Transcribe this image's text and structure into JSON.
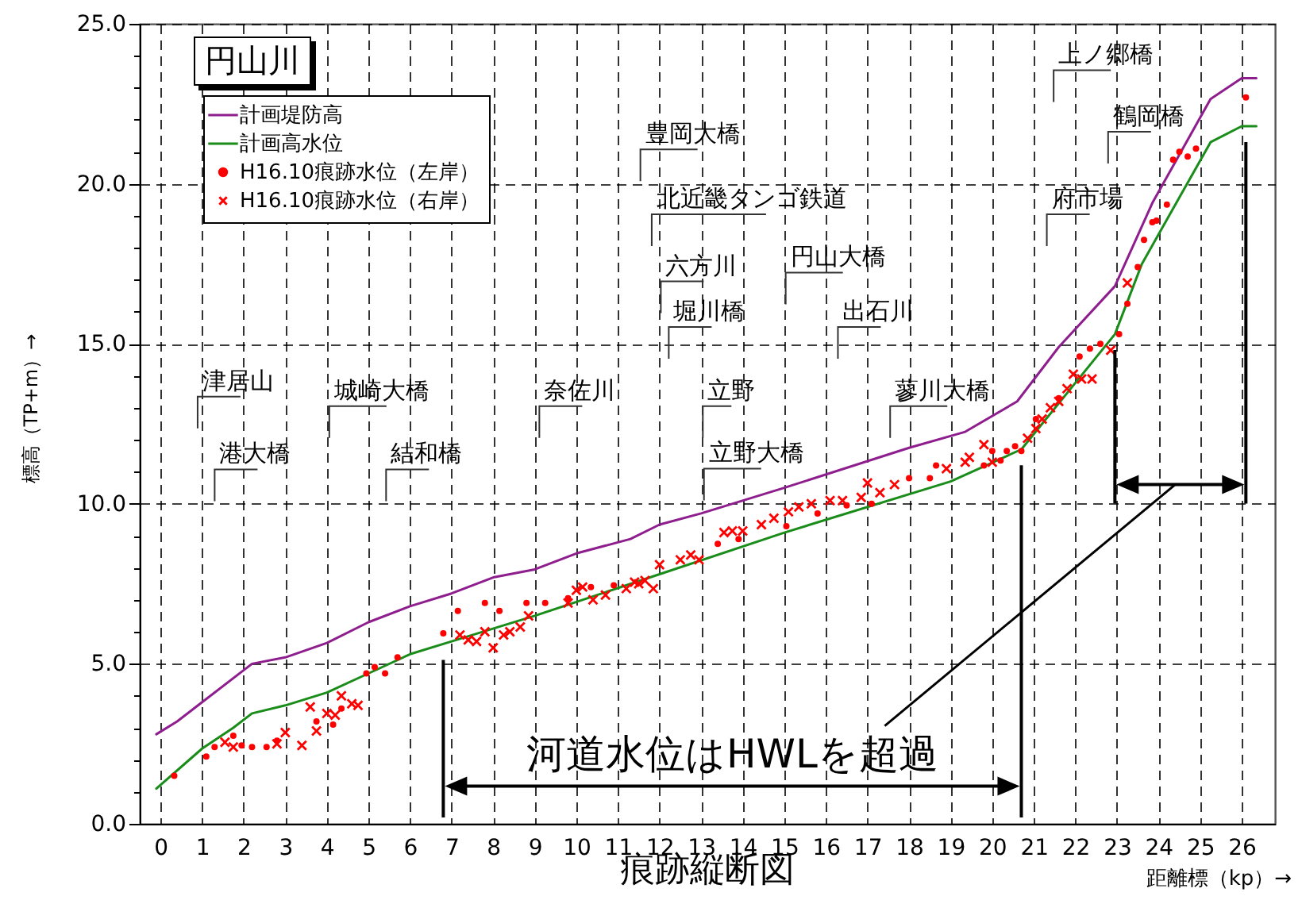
{
  "chart_data": {
    "type": "line",
    "title": "痕跡縦断図",
    "subtitle": "円山川",
    "xlabel": "距離標（kp）→",
    "ylabel": "標高（TP+m）→",
    "xlim": [
      -0.5,
      26.8
    ],
    "ylim": [
      0,
      25
    ],
    "xticks": [
      0,
      1,
      2,
      3,
      4,
      5,
      6,
      7,
      8,
      9,
      10,
      11,
      12,
      13,
      14,
      15,
      16,
      17,
      18,
      19,
      20,
      21,
      22,
      23,
      24,
      25,
      26
    ],
    "yticks": [
      {
        "value": 0,
        "label": "0.0"
      },
      {
        "value": 1,
        "label": null
      },
      {
        "value": 2,
        "label": null
      },
      {
        "value": 3,
        "label": null
      },
      {
        "value": 4,
        "label": null
      },
      {
        "value": 5,
        "label": "5.0"
      },
      {
        "value": 6,
        "label": null
      },
      {
        "value": 7,
        "label": null
      },
      {
        "value": 8,
        "label": null
      },
      {
        "value": 9,
        "label": null
      },
      {
        "value": 10,
        "label": "10.0"
      },
      {
        "value": 11,
        "label": null
      },
      {
        "value": 12,
        "label": null
      },
      {
        "value": 13,
        "label": null
      },
      {
        "value": 14,
        "label": null
      },
      {
        "value": 15,
        "label": "15.0"
      },
      {
        "value": 16,
        "label": null
      },
      {
        "value": 17,
        "label": null
      },
      {
        "value": 18,
        "label": null
      },
      {
        "value": 19,
        "label": null
      },
      {
        "value": 20,
        "label": "20.0"
      },
      {
        "value": 21,
        "label": null
      },
      {
        "value": 22,
        "label": null
      },
      {
        "value": 23,
        "label": null
      },
      {
        "value": 24,
        "label": null
      },
      {
        "value": 25,
        "label": "25.0"
      }
    ],
    "grid": true,
    "legend": "top left",
    "series": [
      {
        "name": "計画堤防高",
        "color": "#8e1e8e",
        "x": [
          -0.1,
          0.4,
          1,
          2.2,
          3,
          4,
          5,
          6,
          7,
          8,
          9,
          10,
          11.3,
          12,
          13,
          15,
          18,
          19.35,
          20.6,
          21.6,
          22.95,
          23.85,
          25.25,
          26,
          26.35
        ],
        "values": [
          2.8,
          3.2,
          3.8,
          5.0,
          5.2,
          5.65,
          6.3,
          6.8,
          7.2,
          7.7,
          7.95,
          8.45,
          8.9,
          9.35,
          9.7,
          10.5,
          11.75,
          12.25,
          13.2,
          14.9,
          16.8,
          19.4,
          22.65,
          23.3,
          23.3
        ]
      },
      {
        "name": "計画高水位",
        "color": "#1a8c1a",
        "x": [
          -0.1,
          1,
          1.75,
          2.2,
          3,
          4,
          5,
          6,
          7,
          9,
          12,
          15,
          19,
          20.7,
          22.95,
          23.6,
          25.25,
          26,
          26.35
        ],
        "values": [
          1.1,
          2.35,
          3.0,
          3.45,
          3.7,
          4.1,
          4.7,
          5.3,
          5.7,
          6.5,
          7.8,
          9.1,
          10.7,
          11.7,
          15.3,
          17.5,
          21.3,
          21.8,
          21.8
        ]
      },
      {
        "name": "H16.10痕跡水位（左岸）",
        "type": "scatter",
        "marker": "circle",
        "color": "#ff0000",
        "x": [
          0.33,
          1.1,
          1.3,
          1.75,
          1.95,
          2.2,
          2.55,
          2.8,
          3.75,
          4.15,
          4.35,
          4.95,
          5.15,
          5.4,
          5.7,
          6.8,
          7.15,
          7.8,
          8.15,
          8.8,
          9.25,
          9.8,
          10.35,
          10.9,
          13.4,
          13.9,
          15.05,
          15.8,
          16.5,
          17.1,
          18,
          18.5,
          18.65,
          19.8,
          20,
          20.2,
          20.35,
          20.55,
          20.7,
          21.05,
          21.6,
          22.1,
          22.35,
          22.6,
          23.05,
          23.25,
          23.5,
          23.65,
          23.85,
          23.95,
          24.2,
          24.35,
          24.5,
          24.7,
          24.9,
          26.1
        ],
        "values": [
          1.5,
          2.1,
          2.4,
          2.75,
          2.45,
          2.4,
          2.4,
          2.6,
          3.2,
          3.1,
          3.6,
          4.7,
          4.9,
          4.7,
          5.2,
          5.95,
          6.65,
          6.9,
          6.65,
          6.9,
          6.9,
          7.05,
          7.4,
          7.45,
          8.75,
          8.9,
          9.3,
          9.7,
          9.95,
          10.0,
          10.8,
          10.8,
          11.2,
          11.2,
          11.65,
          11.35,
          11.65,
          11.8,
          11.65,
          12.65,
          13.3,
          14.6,
          14.85,
          15.0,
          15.3,
          16.25,
          17.4,
          18.25,
          18.8,
          18.85,
          19.35,
          20.75,
          21.0,
          20.85,
          21.1,
          22.7
        ]
      },
      {
        "name": "H16.10痕跡水位（右岸）",
        "type": "scatter",
        "marker": "cross",
        "color": "#ff0000",
        "x": [
          1.55,
          1.75,
          2.8,
          3,
          3.4,
          3.6,
          3.75,
          4,
          4.2,
          4.35,
          4.6,
          4.75,
          7.2,
          7.4,
          7.6,
          7.8,
          8,
          8.25,
          8.4,
          8.65,
          8.85,
          9.8,
          10,
          10.15,
          10.4,
          10.7,
          11.2,
          11.4,
          11.5,
          11.65,
          11.85,
          12,
          12.5,
          12.75,
          12.95,
          13.55,
          13.75,
          14,
          14.45,
          14.75,
          15.1,
          15.35,
          15.65,
          16.1,
          16.4,
          16.85,
          17,
          17.3,
          17.65,
          18.9,
          19.35,
          19.45,
          19.8,
          20,
          20.85,
          21.05,
          21.2,
          21.4,
          21.6,
          21.8,
          21.95,
          22.15,
          22.4,
          22.85,
          23.25
        ],
        "values": [
          2.55,
          2.4,
          2.5,
          2.85,
          2.45,
          3.65,
          2.9,
          3.45,
          3.4,
          4.0,
          3.75,
          3.7,
          5.9,
          5.75,
          5.7,
          6.0,
          5.5,
          5.9,
          6.0,
          6.15,
          6.5,
          6.9,
          7.3,
          7.4,
          7.0,
          7.15,
          7.35,
          7.55,
          7.5,
          7.6,
          7.35,
          8.1,
          8.25,
          8.4,
          8.25,
          9.1,
          9.15,
          9.15,
          9.35,
          9.55,
          9.75,
          9.9,
          10.0,
          10.1,
          10.1,
          10.2,
          10.65,
          10.35,
          10.6,
          11.1,
          11.3,
          11.45,
          11.85,
          11.3,
          12.05,
          12.35,
          12.65,
          13.0,
          13.2,
          13.6,
          14.05,
          13.9,
          13.9,
          14.8,
          16.9
        ]
      }
    ],
    "ref_lines": [
      {
        "axis": "x",
        "value": 6.8,
        "label": "河道水位はHWLを超過"
      },
      {
        "axis": "x",
        "value": 20.7
      },
      {
        "axis": "x",
        "value": 22.95
      },
      {
        "axis": "x",
        "value": 26.1
      }
    ],
    "annotations": [
      "津居山",
      "港大橋",
      "城崎大橋",
      "結和橋",
      "奈佐川",
      "豊岡大橋",
      "北近畿タンゴ鉄道",
      "六方川",
      "堀川橋",
      "円山大橋",
      "出石川",
      "立野",
      "立野大橋",
      "蓼川大橋",
      "府市場",
      "上ノ郷橋",
      "鶴岡橋"
    ]
  }
}
